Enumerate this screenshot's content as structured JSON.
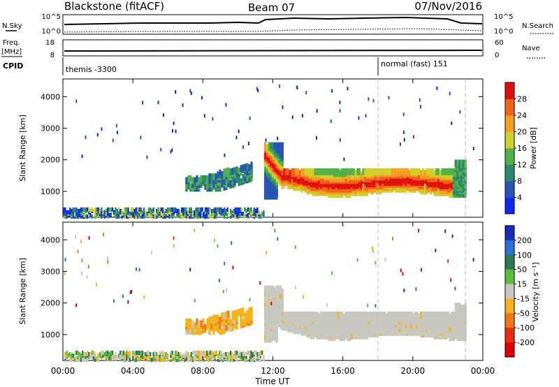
{
  "header": {
    "station": "Blackstone (fitACF)",
    "beam": "Beam 07",
    "date": "07/Nov/2016"
  },
  "summary": {
    "nsky_label": "N.Sky",
    "nsearch_label": "N.Search",
    "nsky_ticks": [
      "10^5",
      "10^0"
    ],
    "nsearch_ticks": [
      "10^5",
      "10^0"
    ],
    "freq_label": "Freq.",
    "freq_unit": "[MHz]",
    "freq_ticks": [
      "18",
      "8"
    ],
    "nave_label": "Nave",
    "nave_ticks": [
      "60",
      "0"
    ],
    "cpid_label": "CPID",
    "cpid_modes": [
      {
        "start_hour": 0,
        "label": "themis -3300"
      },
      {
        "start_hour": 18,
        "label": "normal (fast) 151"
      }
    ]
  },
  "chart_data": [
    {
      "type": "heatmap",
      "name": "power",
      "ylabel": "Slant Range [km]",
      "xlabel": "",
      "xlim": [
        0,
        24
      ],
      "ylim": [
        180,
        4560
      ],
      "y_ticks": [
        "1000",
        "2000",
        "3000",
        "4000"
      ],
      "y_tick_values": [
        1000,
        2000,
        3000,
        4000
      ],
      "colorbar": {
        "label": "Power [dB]",
        "ticks": [
          "4",
          "8",
          "12",
          "16",
          "20",
          "24",
          "28"
        ],
        "colors": [
          "#0a28f0",
          "#2855b4",
          "#2e8a6e",
          "#50b04a",
          "#cfd02a",
          "#f5a020",
          "#f06418",
          "#e01010"
        ]
      },
      "regions": [
        {
          "name": "near-range ground",
          "x_range": [
            0.0,
            11.5
          ],
          "range_km": [
            200,
            450
          ],
          "level": "4-16"
        },
        {
          "name": "pre-midnight echo",
          "x_range": [
            7.0,
            10.8
          ],
          "range_km": [
            1100,
            1800
          ],
          "level": "4-12"
        },
        {
          "name": "main ionospheric band",
          "x_range": [
            11.5,
            23.0
          ],
          "range_km": [
            900,
            2400
          ],
          "level": "4-28"
        },
        {
          "name": "scattered points",
          "x_range": [
            0.0,
            23.5
          ],
          "range_km": [
            2000,
            4400
          ],
          "level": "4-8"
        }
      ]
    },
    {
      "type": "heatmap",
      "name": "velocity",
      "ylabel": "Slant Range [km]",
      "xlabel": "Time UT",
      "xlim": [
        0,
        24
      ],
      "ylim": [
        180,
        4560
      ],
      "y_ticks": [
        "1000",
        "2000",
        "3000",
        "4000"
      ],
      "y_tick_values": [
        1000,
        2000,
        3000,
        4000
      ],
      "colorbar": {
        "label": "Velocity [m s⁻¹]",
        "ticks": [
          "200",
          "100",
          "50",
          "15",
          "-15",
          "-50",
          "-100",
          "-200"
        ],
        "colors": [
          "#1a2fb8",
          "#2a6fd6",
          "#2f7a52",
          "#58c03a",
          "#c8c8c0",
          "#f5b21a",
          "#f07818",
          "#e83010",
          "#e00000"
        ]
      },
      "regions": [
        {
          "name": "near-range mixed",
          "x_range": [
            0.0,
            11.5
          ],
          "range_km": [
            200,
            500
          ],
          "level": "-50 to 50"
        },
        {
          "name": "pre-midnight echo",
          "x_range": [
            7.0,
            10.8
          ],
          "range_km": [
            1100,
            1800
          ],
          "level": "-50 to -100"
        },
        {
          "name": "main ionospheric band",
          "x_range": [
            11.5,
            23.0
          ],
          "range_km": [
            900,
            2400
          ],
          "level": "-15 to 15"
        }
      ]
    }
  ],
  "xaxis": {
    "ticks": [
      "00:00",
      "04:00",
      "08:00",
      "12:00",
      "16:00",
      "20:00",
      "00:00"
    ],
    "tick_hours": [
      0,
      4,
      8,
      12,
      16,
      20,
      24
    ],
    "label": "Time UT"
  }
}
